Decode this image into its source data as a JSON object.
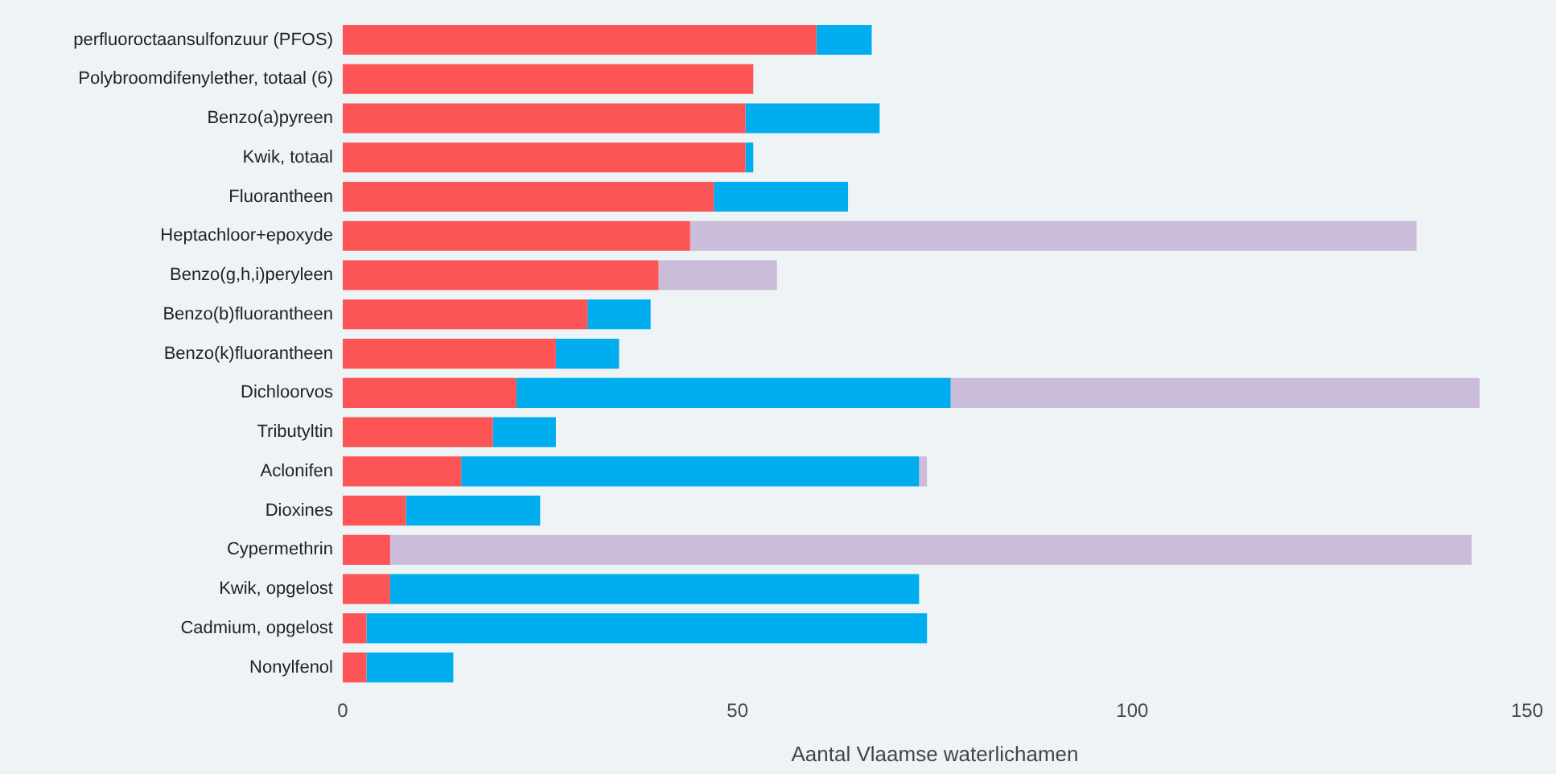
{
  "chart_data": {
    "type": "bar",
    "orientation": "horizontal",
    "stacked": true,
    "xlabel": "Aantal Vlaamse waterlichamen",
    "categories": [
      "perfluoroctaansulfonzuur (PFOS)",
      "Polybroomdifenylether, totaal (6)",
      "Benzo(a)pyreen",
      "Kwik, totaal",
      "Fluorantheen",
      "Heptachloor+epoxyde",
      "Benzo(g,h,i)peryleen",
      "Benzo(b)fluorantheen",
      "Benzo(k)fluorantheen",
      "Dichloorvos",
      "Tributyltin",
      "Aclonifen",
      "Dioxines",
      "Cypermethrin",
      "Kwik, opgelost",
      "Cadmium, opgelost",
      "Nonylfenol"
    ],
    "series": [
      {
        "color": "#fd5555",
        "values": [
          60,
          52,
          51,
          51,
          47,
          44,
          40,
          31,
          27,
          22,
          19,
          15,
          8,
          6,
          6,
          3,
          3
        ]
      },
      {
        "color": "#00aeef",
        "values": [
          7,
          null,
          17,
          1,
          17,
          null,
          null,
          8,
          8,
          55,
          8,
          58,
          17,
          null,
          67,
          71,
          11
        ]
      },
      {
        "color": "#cbbcd9",
        "values": [
          null,
          null,
          null,
          null,
          null,
          92,
          15,
          null,
          null,
          67,
          null,
          1,
          null,
          137,
          null,
          null,
          null
        ]
      }
    ],
    "xlim": [
      0,
      150
    ],
    "xticks": [
      0,
      50,
      100,
      150
    ],
    "grid": false,
    "legend": false
  }
}
